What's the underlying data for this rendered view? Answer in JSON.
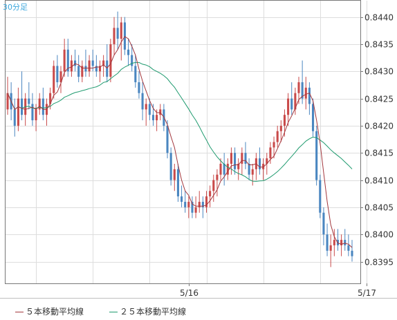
{
  "chart_data": {
    "type": "candlestick",
    "timeframe_label": "30分足",
    "ylim": [
      0.8391,
      0.8443
    ],
    "y_ticks": [
      "0.8440",
      "0.8435",
      "0.8430",
      "0.8425",
      "0.8420",
      "0.8415",
      "0.8410",
      "0.8405",
      "0.8400",
      "0.8395"
    ],
    "x_ticks": [
      {
        "label": "5/16",
        "index": 51
      },
      {
        "label": "5/17",
        "index": 101
      }
    ],
    "grid": true,
    "legend_placement": "bottom",
    "colors": {
      "up": "#c94a4a",
      "down": "#4a86c0",
      "ma5": "#a2363c",
      "ma25": "#1e9a6e",
      "grid": "#dddddd",
      "axis": "#777777",
      "text": "#333333"
    },
    "ohlc": [
      [
        0.8423,
        0.8429,
        0.8422,
        0.8426
      ],
      [
        0.8426,
        0.8428,
        0.8421,
        0.8423
      ],
      [
        0.8423,
        0.8425,
        0.8418,
        0.842
      ],
      [
        0.842,
        0.8427,
        0.8419,
        0.8425
      ],
      [
        0.8425,
        0.843,
        0.8421,
        0.8422
      ],
      [
        0.8422,
        0.8426,
        0.842,
        0.8425
      ],
      [
        0.8425,
        0.8428,
        0.8423,
        0.8424
      ],
      [
        0.8424,
        0.8426,
        0.842,
        0.8421
      ],
      [
        0.8421,
        0.8424,
        0.8419,
        0.8423
      ],
      [
        0.8423,
        0.8426,
        0.8422,
        0.8425
      ],
      [
        0.8425,
        0.8427,
        0.8421,
        0.8422
      ],
      [
        0.8422,
        0.8425,
        0.842,
        0.8424
      ],
      [
        0.8424,
        0.8427,
        0.8423,
        0.8426
      ],
      [
        0.8426,
        0.8432,
        0.8425,
        0.8431
      ],
      [
        0.8431,
        0.8433,
        0.8427,
        0.8428
      ],
      [
        0.8428,
        0.8431,
        0.8426,
        0.843
      ],
      [
        0.843,
        0.8436,
        0.8429,
        0.8434
      ],
      [
        0.8434,
        0.8436,
        0.8429,
        0.843
      ],
      [
        0.843,
        0.8433,
        0.8429,
        0.8432
      ],
      [
        0.8432,
        0.8434,
        0.843,
        0.8431
      ],
      [
        0.8431,
        0.8433,
        0.8428,
        0.8429
      ],
      [
        0.8429,
        0.8432,
        0.8428,
        0.8431
      ],
      [
        0.8431,
        0.8434,
        0.8429,
        0.843
      ],
      [
        0.843,
        0.8433,
        0.8429,
        0.8432
      ],
      [
        0.8432,
        0.8434,
        0.843,
        0.8431
      ],
      [
        0.8431,
        0.8433,
        0.8429,
        0.843
      ],
      [
        0.843,
        0.8432,
        0.8428,
        0.8431
      ],
      [
        0.8431,
        0.8433,
        0.8429,
        0.8432
      ],
      [
        0.8432,
        0.8435,
        0.8428,
        0.8429
      ],
      [
        0.8429,
        0.8436,
        0.8428,
        0.8435
      ],
      [
        0.8435,
        0.844,
        0.8433,
        0.8438
      ],
      [
        0.8438,
        0.8441,
        0.8434,
        0.8436
      ],
      [
        0.8436,
        0.844,
        0.8432,
        0.8439
      ],
      [
        0.8439,
        0.844,
        0.8433,
        0.8434
      ],
      [
        0.8434,
        0.8436,
        0.8431,
        0.8433
      ],
      [
        0.8433,
        0.8435,
        0.843,
        0.8431
      ],
      [
        0.8431,
        0.8433,
        0.8427,
        0.8428
      ],
      [
        0.8428,
        0.843,
        0.8425,
        0.8426
      ],
      [
        0.8426,
        0.8428,
        0.8421,
        0.8423
      ],
      [
        0.8423,
        0.8425,
        0.842,
        0.8424
      ],
      [
        0.8424,
        0.8425,
        0.8421,
        0.8422
      ],
      [
        0.8422,
        0.8424,
        0.842,
        0.8421
      ],
      [
        0.8421,
        0.8423,
        0.8419,
        0.8422
      ],
      [
        0.8422,
        0.8424,
        0.8421,
        0.8423
      ],
      [
        0.8423,
        0.8424,
        0.8419,
        0.842
      ],
      [
        0.842,
        0.8421,
        0.8414,
        0.8415
      ],
      [
        0.8415,
        0.8416,
        0.8409,
        0.841
      ],
      [
        0.841,
        0.8413,
        0.8408,
        0.8412
      ],
      [
        0.8412,
        0.8413,
        0.8406,
        0.8407
      ],
      [
        0.8407,
        0.8409,
        0.8405,
        0.8406
      ],
      [
        0.8406,
        0.8408,
        0.8404,
        0.8405
      ],
      [
        0.8405,
        0.8407,
        0.8403,
        0.8406
      ],
      [
        0.8406,
        0.8407,
        0.8403,
        0.8404
      ],
      [
        0.8404,
        0.8407,
        0.8403,
        0.8405
      ],
      [
        0.8405,
        0.8408,
        0.8404,
        0.8406
      ],
      [
        0.8406,
        0.8407,
        0.8403,
        0.8405
      ],
      [
        0.8405,
        0.8408,
        0.8404,
        0.8407
      ],
      [
        0.8407,
        0.8409,
        0.8405,
        0.8408
      ],
      [
        0.8408,
        0.8411,
        0.8406,
        0.841
      ],
      [
        0.841,
        0.8412,
        0.8407,
        0.8411
      ],
      [
        0.8411,
        0.8414,
        0.841,
        0.8413
      ],
      [
        0.8413,
        0.8415,
        0.8409,
        0.8411
      ],
      [
        0.8411,
        0.8414,
        0.841,
        0.8413
      ],
      [
        0.8413,
        0.8416,
        0.8411,
        0.8415
      ],
      [
        0.8415,
        0.8416,
        0.8411,
        0.8412
      ],
      [
        0.8412,
        0.8414,
        0.841,
        0.8413
      ],
      [
        0.8413,
        0.8416,
        0.8411,
        0.8415
      ],
      [
        0.8415,
        0.8417,
        0.8412,
        0.8413
      ],
      [
        0.8413,
        0.8414,
        0.841,
        0.8411
      ],
      [
        0.8411,
        0.8413,
        0.8409,
        0.8412
      ],
      [
        0.8412,
        0.8415,
        0.841,
        0.8414
      ],
      [
        0.8414,
        0.8416,
        0.8411,
        0.8412
      ],
      [
        0.8412,
        0.8414,
        0.841,
        0.8413
      ],
      [
        0.8413,
        0.8415,
        0.8411,
        0.8414
      ],
      [
        0.8414,
        0.8417,
        0.8413,
        0.8416
      ],
      [
        0.8416,
        0.8418,
        0.8414,
        0.8417
      ],
      [
        0.8417,
        0.842,
        0.8416,
        0.8419
      ],
      [
        0.8419,
        0.8421,
        0.8417,
        0.842
      ],
      [
        0.842,
        0.8423,
        0.8418,
        0.8422
      ],
      [
        0.8422,
        0.8426,
        0.842,
        0.8425
      ],
      [
        0.8425,
        0.8428,
        0.8422,
        0.8423
      ],
      [
        0.8423,
        0.8427,
        0.8422,
        0.8426
      ],
      [
        0.8426,
        0.8429,
        0.8424,
        0.8428
      ],
      [
        0.8428,
        0.8432,
        0.8424,
        0.8425
      ],
      [
        0.8425,
        0.8429,
        0.8423,
        0.8427
      ],
      [
        0.8427,
        0.8428,
        0.8422,
        0.8424
      ],
      [
        0.8424,
        0.8425,
        0.8418,
        0.8419
      ],
      [
        0.8419,
        0.842,
        0.8409,
        0.841
      ],
      [
        0.841,
        0.8411,
        0.8403,
        0.8404
      ],
      [
        0.8404,
        0.8405,
        0.8398,
        0.84
      ],
      [
        0.84,
        0.8402,
        0.8396,
        0.8397
      ],
      [
        0.8397,
        0.84,
        0.8394,
        0.8398
      ],
      [
        0.8398,
        0.8401,
        0.8396,
        0.8399
      ],
      [
        0.8399,
        0.8401,
        0.8397,
        0.8398
      ],
      [
        0.8398,
        0.84,
        0.8396,
        0.8399
      ],
      [
        0.8399,
        0.8401,
        0.8397,
        0.8398
      ],
      [
        0.8398,
        0.84,
        0.8396,
        0.8397
      ],
      [
        0.8397,
        0.8399,
        0.8395,
        0.8396
      ]
    ],
    "series": [
      {
        "name": "５本移動平均線",
        "color": "#a2363c"
      },
      {
        "name": "２５本移動平均線",
        "color": "#1e9a6e"
      }
    ]
  }
}
